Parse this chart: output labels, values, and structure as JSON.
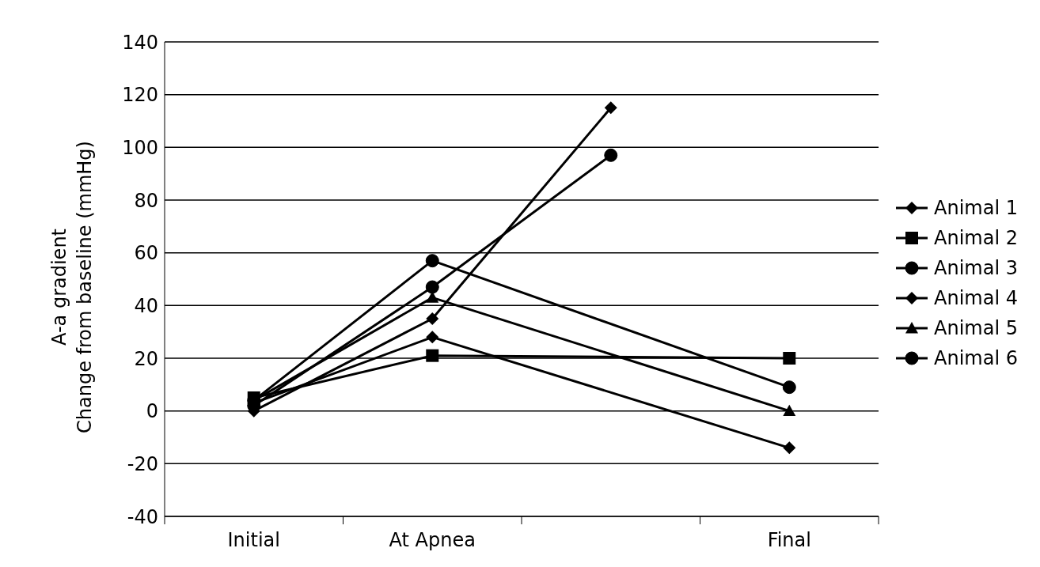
{
  "chart_data": {
    "type": "line",
    "ylabel": "A-a gradient\nChange from baseline (mmHg)",
    "categories": [
      "Initial",
      "At Apnea",
      null,
      "Final"
    ],
    "ylim": [
      -40,
      140
    ],
    "yticks": [
      -40,
      -20,
      0,
      20,
      40,
      60,
      80,
      100,
      120,
      140
    ],
    "grid": "y",
    "legend": "right",
    "line_style": "solid",
    "series": [
      {
        "name": "Animal  1",
        "color": "#000000",
        "marker": "diamond",
        "values": [
          0,
          35,
          115,
          null
        ]
      },
      {
        "name": "Animal  2",
        "color": "#000000",
        "marker": "square",
        "values": [
          5,
          21,
          null,
          20
        ]
      },
      {
        "name": "Animal  3",
        "color": "#000000",
        "marker": "circle",
        "values": [
          4,
          57,
          null,
          9
        ]
      },
      {
        "name": "Animal  4",
        "color": "#000000",
        "marker": "diamond",
        "values": [
          3,
          28,
          null,
          -14
        ]
      },
      {
        "name": "Animal  5",
        "color": "#000000",
        "marker": "triangle",
        "values": [
          4,
          43,
          null,
          0
        ]
      },
      {
        "name": "Animal  6",
        "color": "#000000",
        "marker": "circle",
        "values": [
          2,
          47,
          97,
          null
        ]
      }
    ]
  }
}
